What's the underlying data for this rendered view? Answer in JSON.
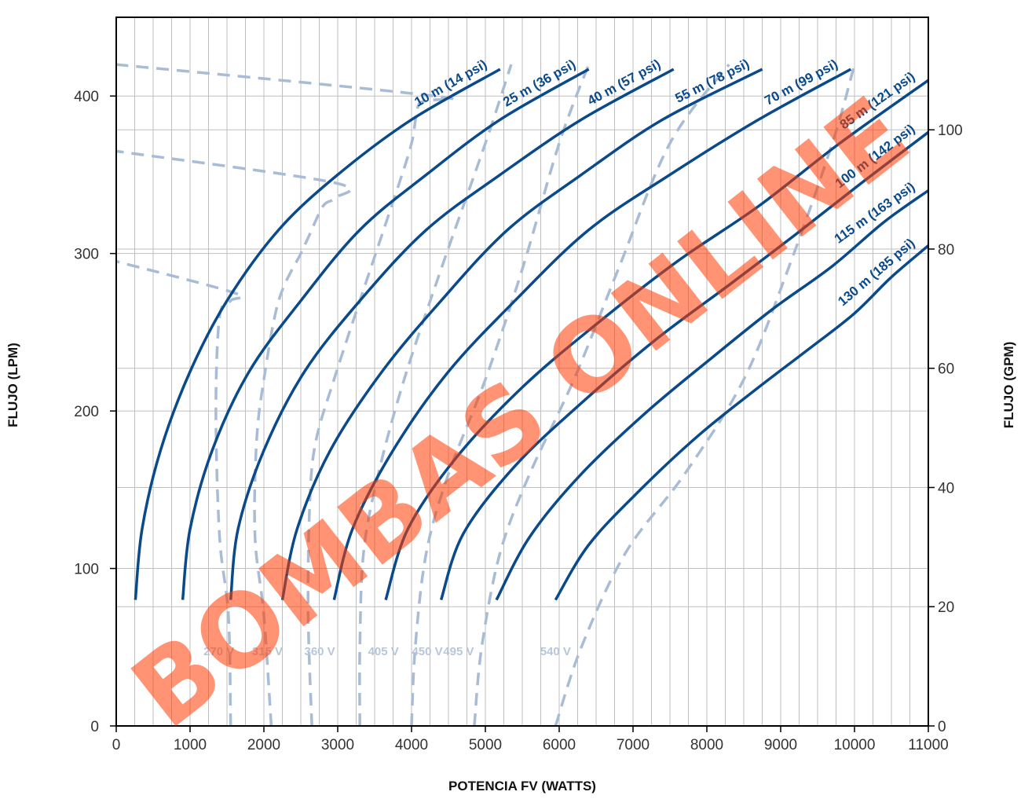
{
  "chart_data": {
    "type": "line",
    "xlabel": "POTENCIA FV (WATTS)",
    "ylabel_left": "FLUJO (LPM)",
    "ylabel_right": "FLUJO (GPM)",
    "xlim": [
      0,
      11000
    ],
    "ylim_left": [
      0,
      450
    ],
    "x_ticks": [
      "0",
      "1000",
      "2000",
      "3000",
      "4000",
      "5000",
      "6000",
      "7000",
      "8000",
      "9000",
      "10000",
      "11000"
    ],
    "y_ticks_left": [
      "0",
      "100",
      "200",
      "300",
      "400"
    ],
    "y_ticks_right": [
      "0",
      "20",
      "40",
      "60",
      "80",
      "100"
    ],
    "grid": true,
    "colors": {
      "curve": "#0a4a8a",
      "voltage": "#a9bcd6",
      "grid": "#bfbfbf",
      "watermark": "#ff3a00"
    },
    "series": [
      {
        "name": "10 m (14 psi)",
        "x": [
          260,
          350,
          600,
          1000,
          1500,
          2200,
          3000,
          4000,
          5200
        ],
        "y": [
          80,
          125,
          175,
          225,
          270,
          315,
          350,
          385,
          417
        ]
      },
      {
        "name": "25 m (36 psi)",
        "x": [
          900,
          1000,
          1300,
          1800,
          2500,
          3300,
          4200,
          5200,
          6400
        ],
        "y": [
          80,
          125,
          175,
          225,
          270,
          315,
          350,
          385,
          417
        ]
      },
      {
        "name": "40 m (57 psi)",
        "x": [
          1550,
          1650,
          2000,
          2550,
          3300,
          4200,
          5200,
          6300,
          7550
        ],
        "y": [
          80,
          125,
          175,
          225,
          270,
          315,
          350,
          385,
          417
        ]
      },
      {
        "name": "55 m (78 psi)",
        "x": [
          2250,
          2450,
          2900,
          3600,
          4400,
          5300,
          6300,
          7400,
          8750
        ],
        "y": [
          80,
          125,
          175,
          225,
          270,
          315,
          350,
          385,
          417
        ]
      },
      {
        "name": "70 m (99 psi)",
        "x": [
          2950,
          3200,
          3750,
          4500,
          5400,
          6400,
          7500,
          8700,
          9950
        ],
        "y": [
          80,
          125,
          175,
          225,
          270,
          315,
          350,
          385,
          417
        ]
      },
      {
        "name": "85 m (121 psi)",
        "x": [
          3650,
          3950,
          4600,
          5500,
          6500,
          7600,
          8700,
          9800,
          11000
        ],
        "y": [
          80,
          125,
          170,
          215,
          255,
          295,
          330,
          370,
          410
        ]
      },
      {
        "name": "100 m (142 psi)",
        "x": [
          4400,
          4700,
          5400,
          6300,
          7300,
          8300,
          9200,
          10100,
          11000
        ],
        "y": [
          80,
          122,
          165,
          205,
          245,
          280,
          312,
          345,
          377
        ]
      },
      {
        "name": "115 m (163 psi)",
        "x": [
          5150,
          5600,
          6300,
          7200,
          8100,
          8900,
          9700,
          10400,
          11000
        ],
        "y": [
          80,
          120,
          160,
          200,
          235,
          265,
          292,
          320,
          340
        ]
      },
      {
        "name": "130 m (185 psi)",
        "x": [
          5950,
          6400,
          7100,
          7900,
          8700,
          9400,
          10000,
          10500,
          11000
        ],
        "y": [
          80,
          115,
          150,
          185,
          215,
          240,
          262,
          285,
          305
        ]
      }
    ],
    "voltage_lines": [
      {
        "name": "270 V",
        "x": [
          1550,
          1520,
          1400,
          1350,
          1400,
          1550,
          1600,
          0
        ],
        "y": [
          0,
          70,
          120,
          200,
          260,
          270,
          275,
          295
        ]
      },
      {
        "name": "315 V",
        "x": [
          2100,
          2000,
          1880,
          1900,
          2000,
          2200,
          2500,
          2600,
          2800,
          2950,
          2950,
          0
        ],
        "y": [
          0,
          70,
          120,
          180,
          220,
          270,
          300,
          310,
          330,
          335,
          345,
          365
        ]
      },
      {
        "name": "360 V",
        "x": [
          2650,
          2600,
          2620,
          2700,
          2950,
          3300,
          3800,
          4000,
          4100,
          4300,
          0
        ],
        "y": [
          0,
          70,
          140,
          180,
          220,
          270,
          340,
          370,
          395,
          400,
          420
        ]
      },
      {
        "name": "405 V",
        "x": [
          3300,
          3300,
          3350,
          3550,
          3900,
          4400,
          5000,
          5350
        ],
        "y": [
          0,
          50,
          110,
          160,
          220,
          290,
          370,
          420
        ]
      },
      {
        "name": "450 V",
        "x": [
          4000,
          4050,
          4200,
          4500,
          5000,
          5500,
          6000,
          6400
        ],
        "y": [
          0,
          50,
          110,
          160,
          220,
          290,
          370,
          420
        ]
      },
      {
        "name": "495 V",
        "x": [
          4850,
          4950,
          5200,
          5600,
          6200,
          6800,
          7500,
          8300
        ],
        "y": [
          0,
          50,
          110,
          160,
          220,
          290,
          370,
          420
        ]
      },
      {
        "name": "540 V",
        "x": [
          5950,
          6300,
          6900,
          7700,
          8500,
          9100,
          9700,
          10000
        ],
        "y": [
          0,
          50,
          110,
          160,
          220,
          290,
          370,
          420
        ]
      }
    ],
    "watermark": "BOMBAS ONLINE"
  }
}
